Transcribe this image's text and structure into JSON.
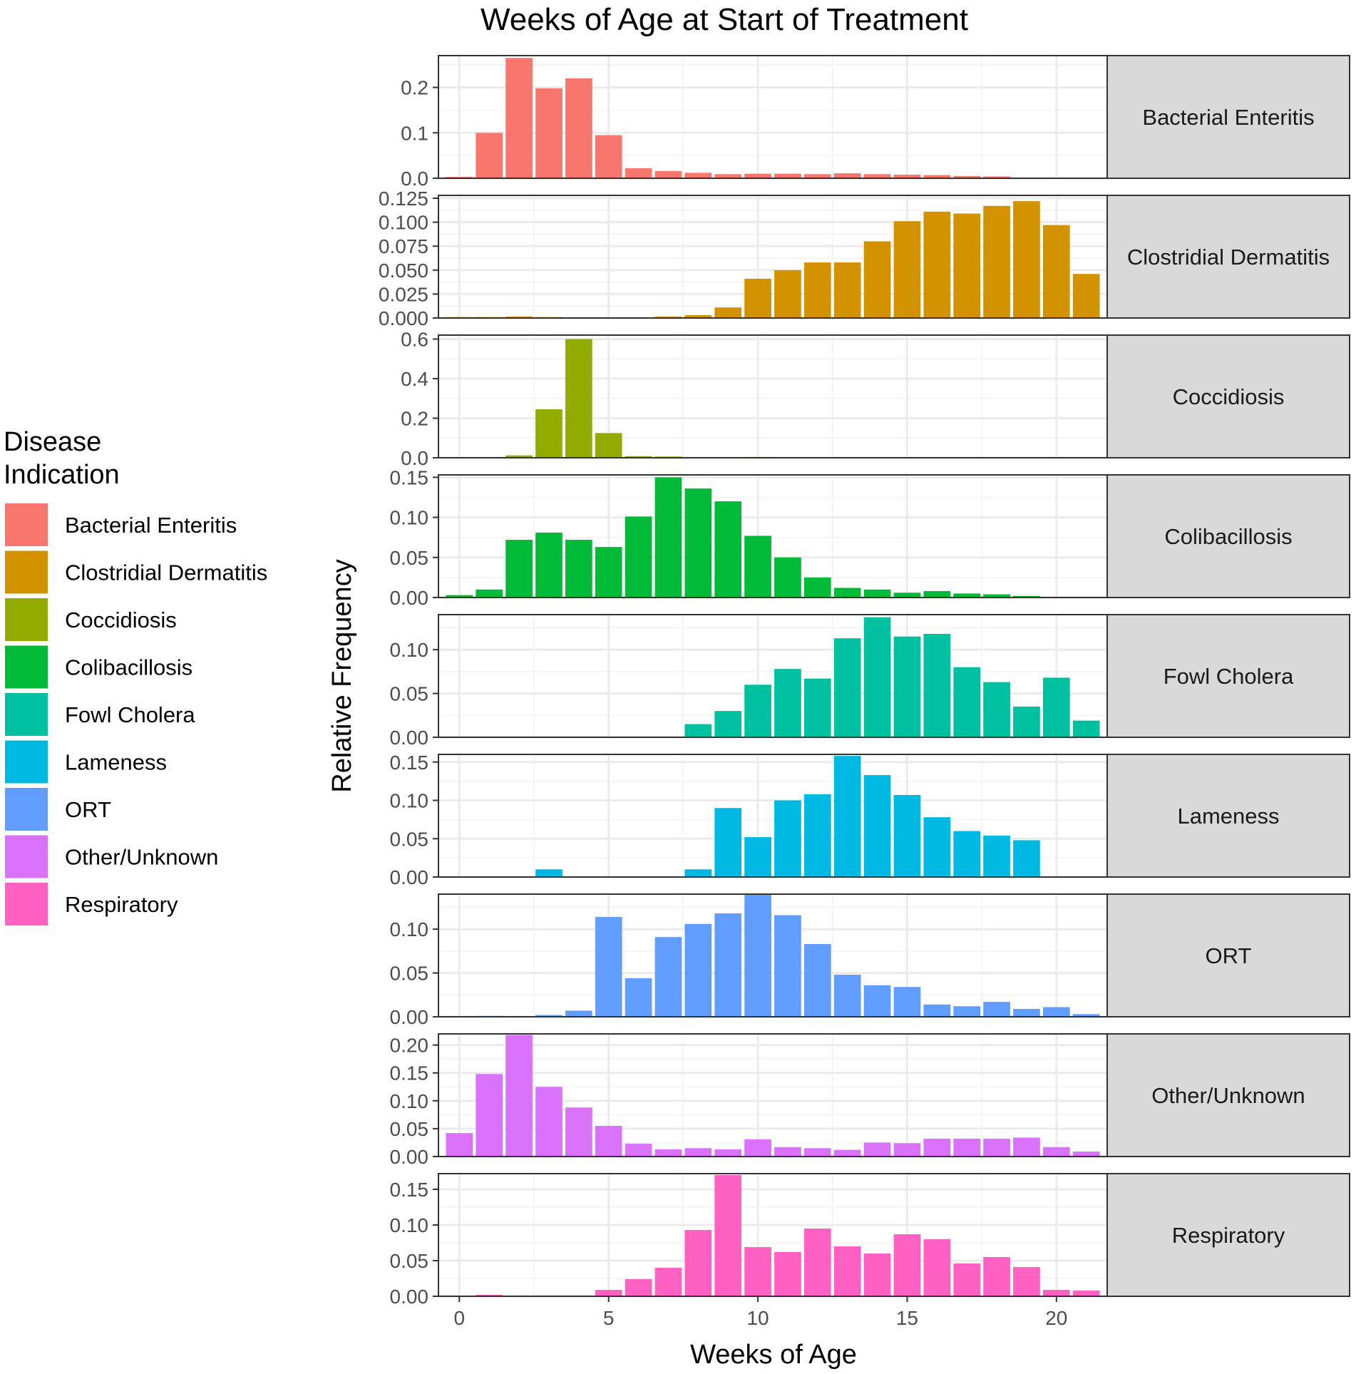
{
  "chart_data": {
    "type": "bar",
    "title": "Weeks of Age at Start of Treatment",
    "xlabel": "Weeks of Age",
    "ylabel": "Relative Frequency",
    "legend_title_lines": [
      "Disease",
      "Indication"
    ],
    "legend_placement": "left",
    "x": [
      0,
      1,
      2,
      3,
      4,
      5,
      6,
      7,
      8,
      9,
      10,
      11,
      12,
      13,
      14,
      15,
      16,
      17,
      18,
      19,
      20,
      21
    ],
    "x_ticks": [
      0,
      5,
      10,
      15,
      20
    ],
    "xlim": [
      -0.7,
      21.7
    ],
    "grid": true,
    "facet_labels": true,
    "series": [
      {
        "name": "Bacterial Enteritis",
        "color": "#F8766D",
        "ylim": [
          0,
          0.27
        ],
        "y_ticks": [
          0.0,
          0.1,
          0.2
        ],
        "y_tick_labels": [
          "0.0",
          "0.1",
          "0.2"
        ],
        "values": [
          0.003,
          0.1,
          0.265,
          0.198,
          0.22,
          0.095,
          0.022,
          0.016,
          0.012,
          0.009,
          0.01,
          0.01,
          0.009,
          0.011,
          0.009,
          0.008,
          0.007,
          0.005,
          0.004,
          0,
          0,
          0
        ]
      },
      {
        "name": "Clostridial Dermatitis",
        "color": "#D39200",
        "ylim": [
          0,
          0.128
        ],
        "y_ticks": [
          0.0,
          0.025,
          0.05,
          0.075,
          0.1,
          0.125
        ],
        "y_tick_labels": [
          "0.000",
          "0.025",
          "0.050",
          "0.075",
          "0.100",
          "0.125"
        ],
        "values": [
          0.001,
          0.001,
          0.0015,
          0.001,
          0,
          0,
          0,
          0.0015,
          0.003,
          0.011,
          0.041,
          0.05,
          0.058,
          0.058,
          0.08,
          0.101,
          0.111,
          0.109,
          0.117,
          0.122,
          0.097,
          0.046
        ]
      },
      {
        "name": "Coccidiosis",
        "color": "#93AA00",
        "ylim": [
          0,
          0.62
        ],
        "y_ticks": [
          0.0,
          0.2,
          0.4,
          0.6
        ],
        "y_tick_labels": [
          "0.0",
          "0.2",
          "0.4",
          "0.6"
        ],
        "values": [
          0,
          0,
          0.012,
          0.245,
          0.6,
          0.125,
          0.008,
          0.006,
          0,
          0,
          0.004,
          0,
          0,
          0.002,
          0,
          0,
          0,
          0,
          0,
          0,
          0,
          0
        ]
      },
      {
        "name": "Colibacillosis",
        "color": "#00BA38",
        "ylim": [
          0,
          0.153
        ],
        "y_ticks": [
          0.0,
          0.05,
          0.1,
          0.15
        ],
        "y_tick_labels": [
          "0.00",
          "0.05",
          "0.10",
          "0.15"
        ],
        "values": [
          0.003,
          0.01,
          0.072,
          0.081,
          0.072,
          0.063,
          0.101,
          0.15,
          0.136,
          0.12,
          0.077,
          0.05,
          0.025,
          0.012,
          0.01,
          0.006,
          0.008,
          0.005,
          0.004,
          0.002,
          0,
          0
        ]
      },
      {
        "name": "Fowl Cholera",
        "color": "#00C19F",
        "ylim": [
          0,
          0.14
        ],
        "y_ticks": [
          0.0,
          0.05,
          0.1
        ],
        "y_tick_labels": [
          "0.00",
          "0.05",
          "0.10"
        ],
        "values": [
          0,
          0,
          0,
          0,
          0,
          0,
          0,
          0,
          0.015,
          0.03,
          0.06,
          0.078,
          0.067,
          0.113,
          0.137,
          0.115,
          0.118,
          0.08,
          0.063,
          0.035,
          0.068,
          0.019
        ]
      },
      {
        "name": "Lameness",
        "color": "#00B9E3",
        "ylim": [
          0,
          0.16
        ],
        "y_ticks": [
          0.0,
          0.05,
          0.1,
          0.15
        ],
        "y_tick_labels": [
          "0.00",
          "0.05",
          "0.10",
          "0.15"
        ],
        "values": [
          0,
          0,
          0,
          0.01,
          0,
          0,
          0,
          0,
          0.01,
          0.09,
          0.052,
          0.1,
          0.108,
          0.158,
          0.133,
          0.107,
          0.078,
          0.06,
          0.054,
          0.048,
          0,
          0
        ]
      },
      {
        "name": "ORT",
        "color": "#619CFF",
        "ylim": [
          0,
          0.14
        ],
        "y_ticks": [
          0.0,
          0.05,
          0.1
        ],
        "y_tick_labels": [
          "0.00",
          "0.05",
          "0.10"
        ],
        "values": [
          0,
          0.001,
          0,
          0.002,
          0.007,
          0.114,
          0.044,
          0.091,
          0.106,
          0.118,
          0.14,
          0.116,
          0.083,
          0.048,
          0.036,
          0.034,
          0.014,
          0.012,
          0.017,
          0.009,
          0.011,
          0.003
        ]
      },
      {
        "name": "Other/Unknown",
        "color": "#DB72FB",
        "ylim": [
          0,
          0.22
        ],
        "y_ticks": [
          0.0,
          0.05,
          0.1,
          0.15,
          0.2
        ],
        "y_tick_labels": [
          "0.00",
          "0.05",
          "0.10",
          "0.15",
          "0.20"
        ],
        "values": [
          0.042,
          0.148,
          0.218,
          0.125,
          0.088,
          0.055,
          0.023,
          0.013,
          0.015,
          0.013,
          0.031,
          0.017,
          0.015,
          0.012,
          0.025,
          0.024,
          0.032,
          0.032,
          0.032,
          0.034,
          0.017,
          0.009
        ]
      },
      {
        "name": "Respiratory",
        "color": "#FF61C3",
        "ylim": [
          0,
          0.172
        ],
        "y_ticks": [
          0.0,
          0.05,
          0.1,
          0.15
        ],
        "y_tick_labels": [
          "0.00",
          "0.05",
          "0.10",
          "0.15"
        ],
        "values": [
          0,
          0.002,
          0,
          0,
          0.001,
          0.009,
          0.024,
          0.04,
          0.093,
          0.17,
          0.069,
          0.062,
          0.095,
          0.07,
          0.06,
          0.087,
          0.08,
          0.046,
          0.055,
          0.041,
          0.009,
          0.008
        ]
      }
    ]
  }
}
